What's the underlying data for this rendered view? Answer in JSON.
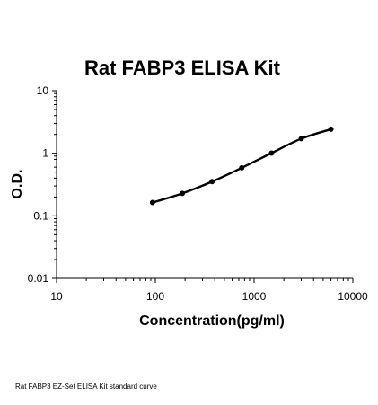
{
  "chart_data": {
    "type": "line",
    "title": "Rat FABP3 ELISA Kit",
    "xlabel": "Concentration(pg/ml)",
    "ylabel": "O.D.",
    "xscale": "log",
    "yscale": "log",
    "xlim": [
      10,
      10000
    ],
    "ylim": [
      0.01,
      10
    ],
    "x_ticks": [
      "10",
      "100",
      "1000",
      "10000"
    ],
    "y_ticks": [
      "0.01",
      "0.1",
      "1",
      "10"
    ],
    "grid": false,
    "legend": "none",
    "series": [
      {
        "color": "#000000",
        "marker": "circle",
        "x": [
          93.75,
          187.5,
          375,
          750,
          1500,
          3000,
          6000
        ],
        "y": [
          0.163,
          0.228,
          0.352,
          0.585,
          1.006,
          1.71,
          2.42
        ]
      }
    ]
  },
  "caption": "Rat FABP3 EZ-Set ELISA Kit standard curve"
}
